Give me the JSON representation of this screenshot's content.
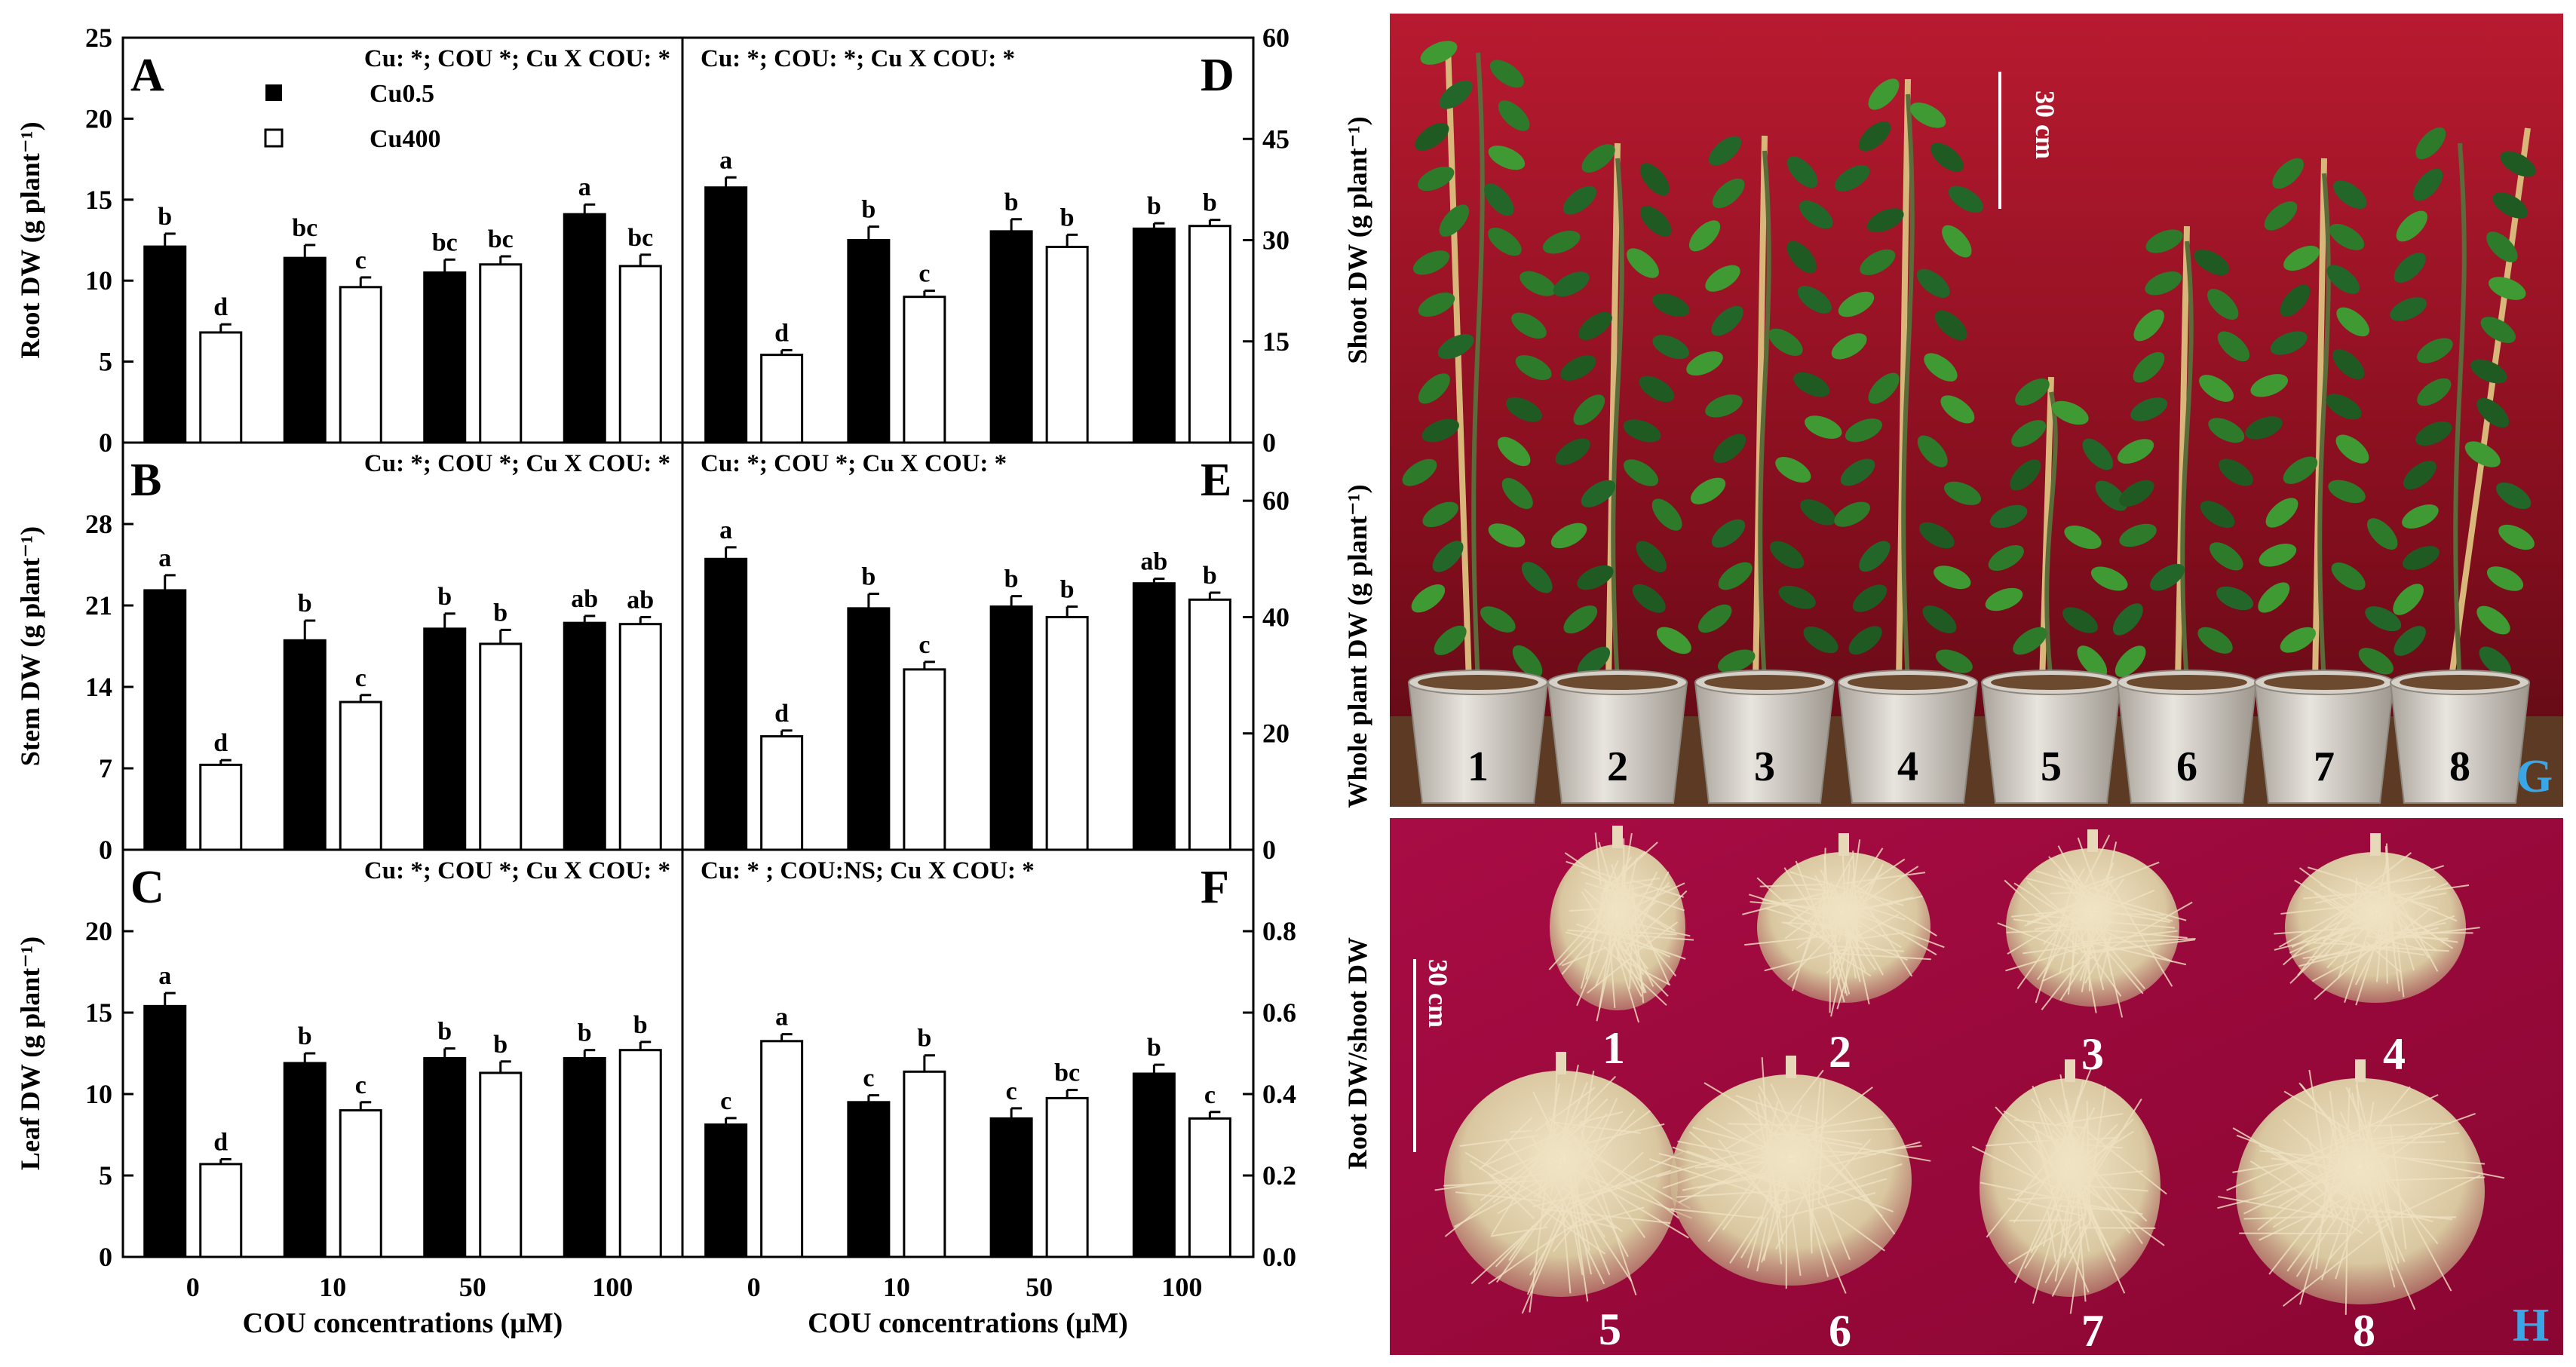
{
  "chart_data": [
    {
      "panel": "A",
      "type": "bar",
      "stats": "Cu: *; COU *; Cu X COU: *",
      "ylabel": "Root DW (g plant⁻¹)",
      "ylim": [
        0,
        25
      ],
      "yticks": [
        "0",
        "5",
        "10",
        "15",
        "20",
        "25"
      ],
      "categories": [
        "0",
        "10",
        "50",
        "100"
      ],
      "series": [
        {
          "name": "Cu0.5",
          "values": [
            12.1,
            11.4,
            10.5,
            14.1
          ],
          "errors": [
            0.8,
            0.8,
            0.8,
            0.6
          ],
          "letters": [
            "b",
            "bc",
            "bc",
            "a"
          ]
        },
        {
          "name": "Cu400",
          "values": [
            6.8,
            9.6,
            11.0,
            10.9
          ],
          "errors": [
            0.5,
            0.6,
            0.5,
            0.7
          ],
          "letters": [
            "d",
            "c",
            "bc",
            "bc"
          ]
        }
      ]
    },
    {
      "panel": "B",
      "type": "bar",
      "stats": "Cu: *; COU *; Cu X COU: *",
      "ylabel": "Stem DW (g plant⁻¹)",
      "ylim": [
        0,
        35
      ],
      "yticks": [
        "0",
        "7",
        "14",
        "21",
        "28"
      ],
      "categories": [
        "0",
        "10",
        "50",
        "100"
      ],
      "series": [
        {
          "name": "Cu0.5",
          "values": [
            22.3,
            18.0,
            19.0,
            19.5
          ],
          "errors": [
            1.3,
            1.7,
            1.3,
            0.6
          ],
          "letters": [
            "a",
            "b",
            "b",
            "ab"
          ]
        },
        {
          "name": "Cu400",
          "values": [
            7.3,
            12.7,
            17.7,
            19.4
          ],
          "errors": [
            0.4,
            0.6,
            1.2,
            0.6
          ],
          "letters": [
            "d",
            "c",
            "b",
            "ab"
          ]
        }
      ]
    },
    {
      "panel": "C",
      "type": "bar",
      "stats": "Cu: *; COU *; Cu X COU: *",
      "ylabel": "Leaf DW (g plant⁻¹)",
      "ylim": [
        0,
        25
      ],
      "yticks": [
        "0",
        "5",
        "10",
        "15",
        "20"
      ],
      "categories": [
        "0",
        "10",
        "50",
        "100"
      ],
      "xlabel": "COU concentrations (μM)",
      "series": [
        {
          "name": "Cu0.5",
          "values": [
            15.4,
            11.9,
            12.2,
            12.2
          ],
          "errors": [
            0.8,
            0.6,
            0.6,
            0.5
          ],
          "letters": [
            "a",
            "b",
            "b",
            "b"
          ]
        },
        {
          "name": "Cu400",
          "values": [
            5.7,
            9.0,
            11.3,
            12.7
          ],
          "errors": [
            0.3,
            0.5,
            0.7,
            0.5
          ],
          "letters": [
            "d",
            "c",
            "b",
            "b"
          ]
        }
      ]
    },
    {
      "panel": "D",
      "type": "bar",
      "stats": "Cu: *; COU: *; Cu X COU: *",
      "ylabel": "Shoot DW (g plant⁻¹)",
      "ylim": [
        0,
        60
      ],
      "yticks": [
        "0",
        "15",
        "30",
        "45",
        "60"
      ],
      "categories": [
        "0",
        "10",
        "50",
        "100"
      ],
      "series": [
        {
          "name": "Cu0.5",
          "values": [
            37.8,
            30.0,
            31.3,
            31.7
          ],
          "errors": [
            1.5,
            2.0,
            1.8,
            0.8
          ],
          "letters": [
            "a",
            "b",
            "b",
            "b"
          ]
        },
        {
          "name": "Cu400",
          "values": [
            13.0,
            21.6,
            29.0,
            32.1
          ],
          "errors": [
            0.7,
            0.9,
            1.8,
            0.9
          ],
          "letters": [
            "d",
            "c",
            "b",
            "b"
          ]
        }
      ]
    },
    {
      "panel": "E",
      "type": "bar",
      "stats": "Cu: *; COU *; Cu X COU: *",
      "ylabel": "Whole plant DW (g plant⁻¹)",
      "ylim": [
        0,
        70
      ],
      "yticks": [
        "0",
        "20",
        "40",
        "60"
      ],
      "categories": [
        "0",
        "10",
        "50",
        "100"
      ],
      "series": [
        {
          "name": "Cu0.5",
          "values": [
            50.0,
            41.5,
            41.8,
            45.8
          ],
          "errors": [
            2.0,
            2.5,
            1.8,
            0.8
          ],
          "letters": [
            "a",
            "b",
            "b",
            "ab"
          ]
        },
        {
          "name": "Cu400",
          "values": [
            19.5,
            31.0,
            40.0,
            43.0
          ],
          "errors": [
            1.0,
            1.3,
            1.8,
            1.2
          ],
          "letters": [
            "d",
            "c",
            "b",
            "b"
          ]
        }
      ]
    },
    {
      "panel": "F",
      "type": "bar",
      "stats": "Cu: * ; COU:NS; Cu X COU: *",
      "ylabel": "Root DW/shoot DW",
      "ylim": [
        0,
        1.0
      ],
      "yticks": [
        "0.0",
        "0.2",
        "0.4",
        "0.6",
        "0.8"
      ],
      "categories": [
        "0",
        "10",
        "50",
        "100"
      ],
      "xlabel": "COU concentrations (μM)",
      "series": [
        {
          "name": "Cu0.5",
          "values": [
            0.325,
            0.38,
            0.34,
            0.45
          ],
          "errors": [
            0.016,
            0.017,
            0.025,
            0.022
          ],
          "letters": [
            "c",
            "c",
            "c",
            "b"
          ]
        },
        {
          "name": "Cu400",
          "values": [
            0.53,
            0.455,
            0.39,
            0.34
          ],
          "errors": [
            0.017,
            0.04,
            0.02,
            0.016
          ],
          "letters": [
            "a",
            "b",
            "bc",
            "c"
          ]
        }
      ]
    }
  ],
  "legend": {
    "items": [
      "Cu0.5",
      "Cu400"
    ]
  },
  "photos": {
    "G": {
      "letter": "G",
      "scale": "30 cm",
      "plant_labels": [
        "1",
        "2",
        "3",
        "4",
        "5",
        "6",
        "7",
        "8"
      ],
      "backdrop_color": "#8a1020"
    },
    "H": {
      "letter": "H",
      "scale": "30 cm",
      "root_labels": [
        "1",
        "2",
        "3",
        "4",
        "5",
        "6",
        "7",
        "8"
      ],
      "backdrop_color": "#9c0a3a"
    }
  }
}
